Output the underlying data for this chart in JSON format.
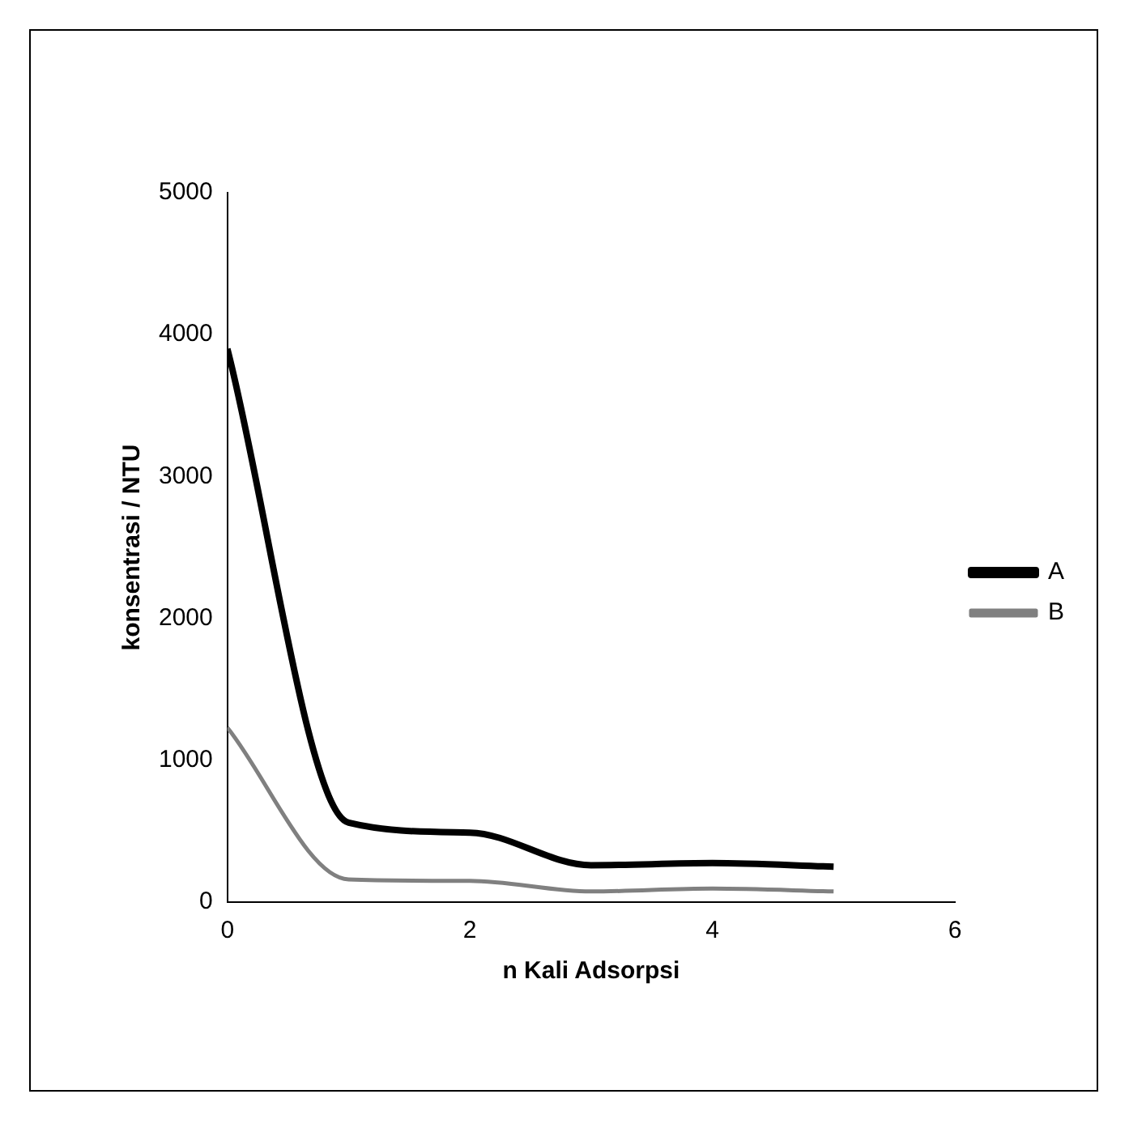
{
  "chart_data": {
    "type": "line",
    "xlabel": "n Kali Adsorpsi",
    "ylabel": "konsentrasi / NTU",
    "x": [
      0,
      1,
      2,
      3,
      4,
      5
    ],
    "series": [
      {
        "name": "A",
        "color": "#000000",
        "values": [
          3900,
          560,
          490,
          260,
          275,
          250
        ]
      },
      {
        "name": "B",
        "color": "#808080",
        "values": [
          1230,
          160,
          150,
          75,
          95,
          75
        ]
      }
    ],
    "xlim": [
      0,
      6
    ],
    "xticks": [
      0,
      2,
      4,
      6
    ],
    "ylim": [
      0,
      5000
    ],
    "yticks": [
      0,
      1000,
      2000,
      3000,
      4000,
      5000
    ],
    "grid": false,
    "legend": "right",
    "marker": "none",
    "line_style": "solid"
  }
}
